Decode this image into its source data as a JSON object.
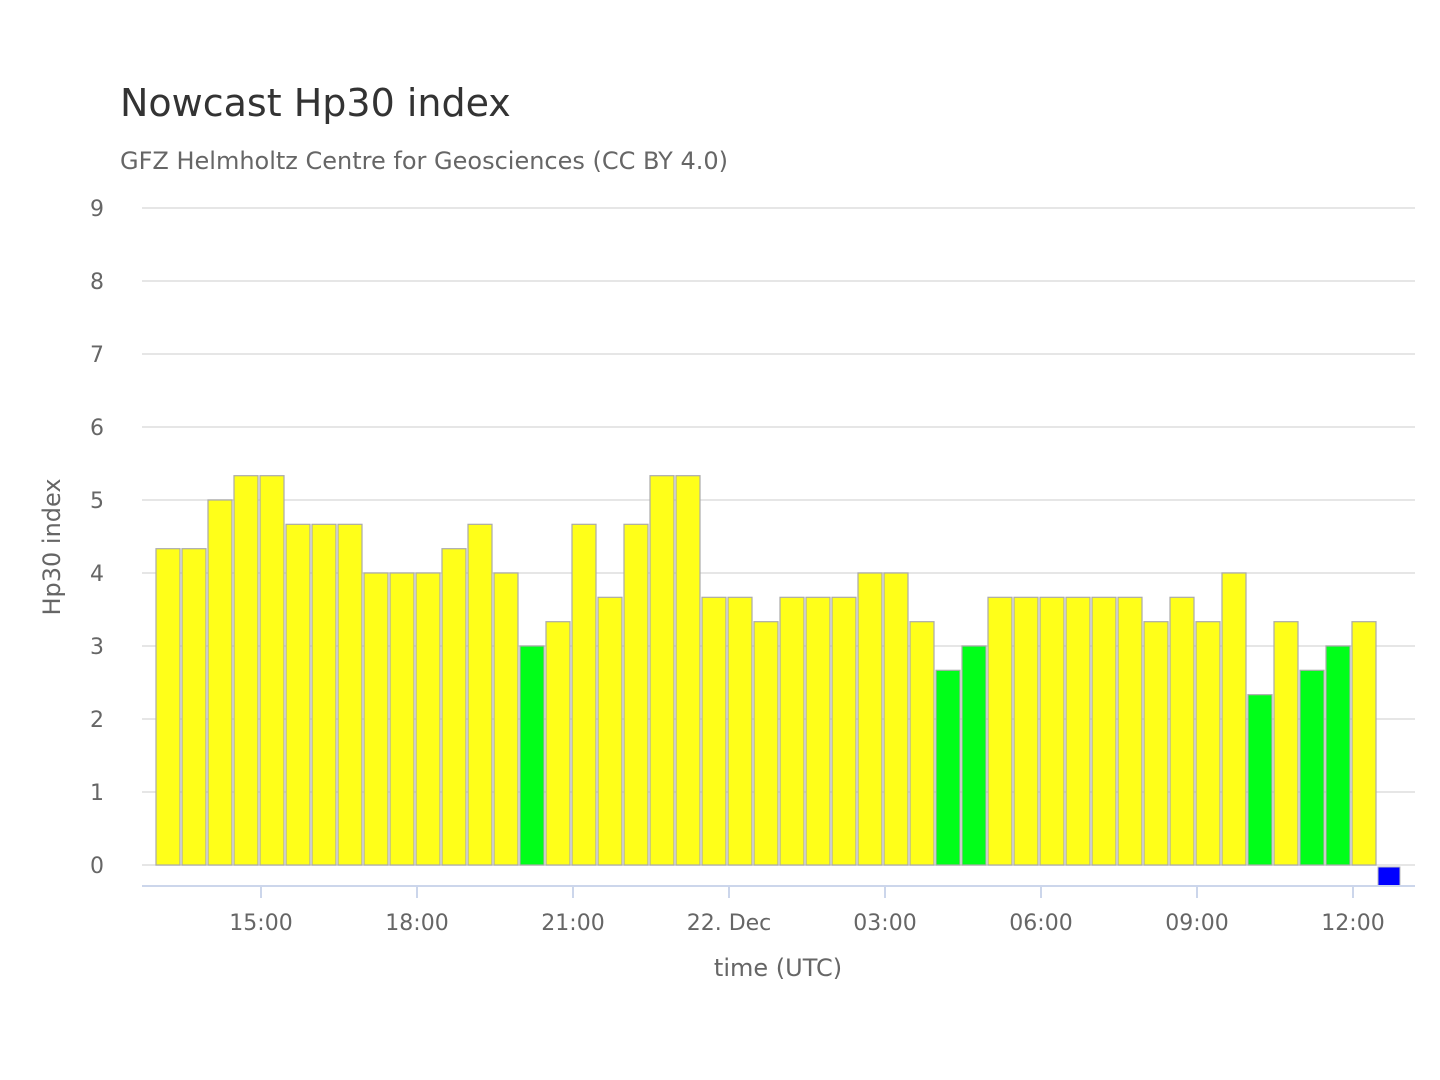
{
  "chart_data": {
    "type": "bar",
    "title": "Nowcast Hp30 index",
    "subtitle": "GFZ Helmholtz Centre for Geosciences (CC BY 4.0)",
    "xlabel": "time (UTC)",
    "ylabel": "Hp30 index",
    "ylim": [
      -0.27,
      9
    ],
    "yticks": [
      "0",
      "1",
      "2",
      "3",
      "4",
      "5",
      "6",
      "7",
      "8",
      "9"
    ],
    "xticks": [
      {
        "label": "15:00",
        "at": "15:00"
      },
      {
        "label": "18:00",
        "at": "18:00"
      },
      {
        "label": "21:00",
        "at": "21:00"
      },
      {
        "label": "22. Dec",
        "at": "00:00"
      },
      {
        "label": "03:00",
        "at": "03:00"
      },
      {
        "label": "06:00",
        "at": "06:00"
      },
      {
        "label": "09:00",
        "at": "09:00"
      },
      {
        "label": "12:00",
        "at": "12:00"
      }
    ],
    "grid": true,
    "legend": "none",
    "colors": {
      "yellow": "#ffff19",
      "green": "#00ff19",
      "blue": "#0000ff"
    },
    "categories": [
      "13:00",
      "13:30",
      "14:00",
      "14:30",
      "15:00",
      "15:30",
      "16:00",
      "16:30",
      "17:00",
      "17:30",
      "18:00",
      "18:30",
      "19:00",
      "19:30",
      "20:00",
      "20:30",
      "21:00",
      "21:30",
      "22:00",
      "22:30",
      "23:00",
      "23:30",
      "00:00",
      "00:30",
      "01:00",
      "01:30",
      "02:00",
      "02:30",
      "03:00",
      "03:30",
      "04:00",
      "04:30",
      "05:00",
      "05:30",
      "06:00",
      "06:30",
      "07:00",
      "07:30",
      "08:00",
      "08:30",
      "09:00",
      "09:30",
      "10:00",
      "10:30",
      "11:00",
      "11:30",
      "12:00",
      "12:30"
    ],
    "values": [
      4.333,
      4.333,
      5.0,
      5.333,
      5.333,
      4.667,
      4.667,
      4.667,
      4.0,
      4.0,
      4.0,
      4.333,
      4.667,
      4.0,
      3.0,
      3.333,
      4.667,
      3.667,
      4.667,
      5.333,
      5.333,
      3.667,
      3.667,
      3.333,
      3.667,
      3.667,
      3.667,
      4.0,
      4.0,
      3.333,
      2.667,
      3.0,
      3.667,
      3.667,
      3.667,
      3.667,
      3.667,
      3.667,
      3.333,
      3.667,
      3.333,
      4.0,
      2.333,
      3.333,
      2.667,
      3.0,
      3.333,
      0
    ],
    "bar_colors": [
      "yellow",
      "yellow",
      "yellow",
      "yellow",
      "yellow",
      "yellow",
      "yellow",
      "yellow",
      "yellow",
      "yellow",
      "yellow",
      "yellow",
      "yellow",
      "yellow",
      "green",
      "yellow",
      "yellow",
      "yellow",
      "yellow",
      "yellow",
      "yellow",
      "yellow",
      "yellow",
      "yellow",
      "yellow",
      "yellow",
      "yellow",
      "yellow",
      "yellow",
      "yellow",
      "green",
      "green",
      "yellow",
      "yellow",
      "yellow",
      "yellow",
      "yellow",
      "yellow",
      "yellow",
      "yellow",
      "yellow",
      "yellow",
      "green",
      "yellow",
      "green",
      "green",
      "yellow",
      "blue"
    ]
  }
}
